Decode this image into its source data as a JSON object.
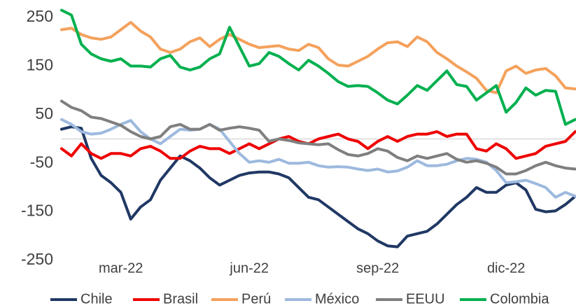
{
  "chart_data": {
    "type": "line",
    "categories": [
      null,
      null,
      null,
      null,
      null,
      null,
      "mar-22",
      null,
      null,
      null,
      null,
      null,
      null,
      null,
      null,
      null,
      null,
      null,
      null,
      "jun-22",
      null,
      null,
      null,
      null,
      null,
      null,
      null,
      null,
      null,
      null,
      null,
      null,
      "sep-22",
      null,
      null,
      null,
      null,
      null,
      null,
      null,
      null,
      null,
      null,
      null,
      null,
      "dic-22",
      null,
      null,
      null,
      null,
      null,
      null,
      null
    ],
    "ylim": [
      -250,
      250
    ],
    "yticks": [
      -250,
      -150,
      -50,
      50,
      150,
      250
    ],
    "grid": false,
    "legend": "bottom",
    "series": [
      {
        "name": "Chile",
        "color": "#203864",
        "values": [
          20,
          25,
          22,
          -40,
          -75,
          -90,
          -110,
          -165,
          -140,
          -125,
          -85,
          -60,
          -35,
          -45,
          -60,
          -80,
          -95,
          -85,
          -75,
          -70,
          -68,
          -68,
          -72,
          -80,
          -100,
          -120,
          -125,
          -140,
          -155,
          -170,
          -185,
          -195,
          -210,
          -220,
          -222,
          -200,
          -195,
          -190,
          -175,
          -155,
          -135,
          -120,
          -100,
          -110,
          -110,
          -95,
          -90,
          -105,
          -145,
          -150,
          -148,
          -135,
          -118
        ]
      },
      {
        "name": "Brasil",
        "color": "#ee0000",
        "values": [
          -20,
          -35,
          -10,
          -30,
          -40,
          -30,
          -30,
          -35,
          -20,
          -15,
          -25,
          -40,
          -40,
          -25,
          -15,
          -20,
          -20,
          -30,
          -20,
          -10,
          -20,
          -10,
          0,
          5,
          -5,
          -10,
          0,
          5,
          10,
          0,
          -5,
          -20,
          -5,
          5,
          -5,
          5,
          10,
          10,
          15,
          5,
          10,
          10,
          -20,
          -25,
          -10,
          -20,
          -40,
          -35,
          -30,
          -15,
          -10,
          -5,
          15
        ]
      },
      {
        "name": "Perú",
        "color": "#f4a15c",
        "values": [
          225,
          228,
          215,
          208,
          205,
          210,
          225,
          240,
          222,
          210,
          185,
          178,
          185,
          200,
          208,
          190,
          205,
          215,
          205,
          195,
          188,
          190,
          192,
          185,
          182,
          195,
          188,
          165,
          152,
          150,
          160,
          170,
          185,
          198,
          200,
          190,
          210,
          200,
          178,
          165,
          150,
          138,
          125,
          100,
          95,
          140,
          150,
          135,
          142,
          145,
          130,
          105,
          103
        ]
      },
      {
        "name": "México",
        "color": "#9db9de",
        "values": [
          40,
          30,
          15,
          10,
          12,
          20,
          30,
          38,
          15,
          0,
          -10,
          5,
          20,
          18,
          20,
          30,
          20,
          -5,
          -30,
          -48,
          -45,
          -48,
          -42,
          -50,
          -50,
          -48,
          -55,
          -58,
          -57,
          -58,
          -62,
          -65,
          -62,
          -68,
          -66,
          -58,
          -45,
          -55,
          -55,
          -52,
          -45,
          -40,
          -42,
          -48,
          -65,
          -90,
          -88,
          -85,
          -92,
          -100,
          -120,
          -110,
          -118
        ]
      },
      {
        "name": "EEUU",
        "color": "#7f7f7f",
        "values": [
          78,
          65,
          58,
          45,
          42,
          35,
          28,
          15,
          5,
          0,
          5,
          25,
          30,
          20,
          20,
          30,
          18,
          22,
          25,
          22,
          18,
          -5,
          0,
          -3,
          -8,
          -10,
          -12,
          -10,
          -22,
          -32,
          -35,
          -30,
          -20,
          -25,
          -38,
          -45,
          -35,
          -40,
          -35,
          -30,
          -42,
          -48,
          -45,
          -50,
          -58,
          -72,
          -72,
          -65,
          -55,
          -48,
          -55,
          -60,
          -62
        ]
      },
      {
        "name": "Colombia",
        "color": "#00b04f",
        "values": [
          265,
          255,
          195,
          175,
          165,
          160,
          165,
          150,
          150,
          148,
          165,
          172,
          148,
          142,
          148,
          165,
          175,
          230,
          190,
          150,
          155,
          178,
          170,
          155,
          142,
          162,
          150,
          135,
          118,
          108,
          110,
          108,
          95,
          80,
          72,
          90,
          110,
          100,
          120,
          140,
          112,
          108,
          80,
          95,
          110,
          55,
          75,
          105,
          90,
          100,
          98,
          30,
          40
        ]
      }
    ]
  }
}
